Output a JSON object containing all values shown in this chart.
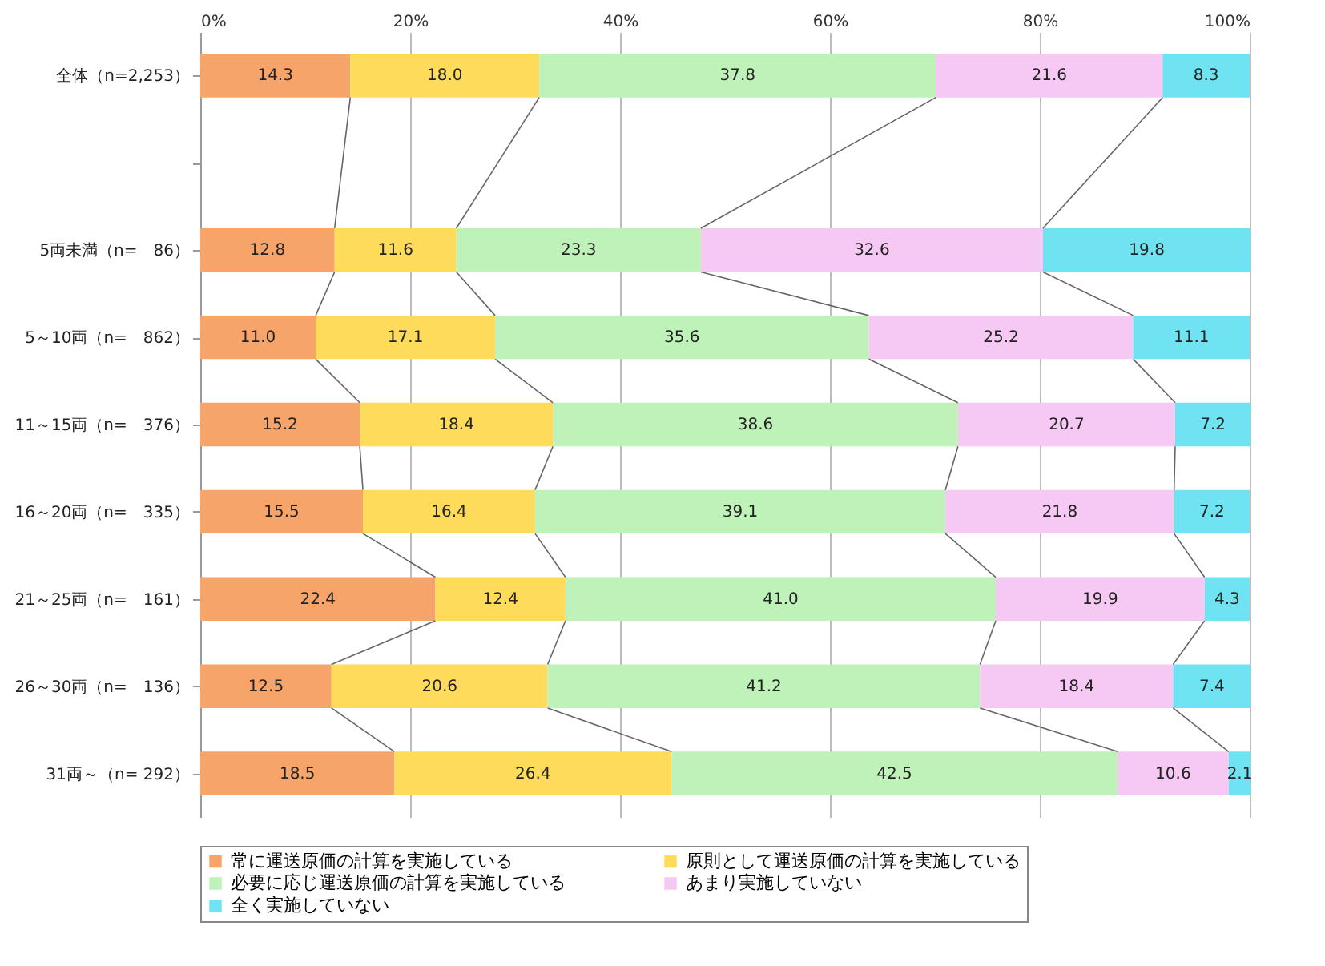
{
  "chart_data": {
    "type": "bar",
    "orientation": "horizontal",
    "stacked": true,
    "grid": "x",
    "legend": "bottom",
    "categories": [
      "全体（n=2,253）",
      null,
      "5両未満（n=　86）",
      "5～10両（n=　862）",
      "11～15両（n=　376）",
      "16～20両（n=　335）",
      "21～25両（n=　161）",
      "26～30両（n=　136）",
      "31両～（n= 292）"
    ],
    "xlim": [
      0,
      100
    ],
    "xticks": [
      {
        "value": 0,
        "label": "0%"
      },
      {
        "value": 20,
        "label": "20%"
      },
      {
        "value": 40,
        "label": "40%"
      },
      {
        "value": 60,
        "label": "60%"
      },
      {
        "value": 80,
        "label": "80%"
      },
      {
        "value": 100,
        "label": "100%"
      }
    ],
    "series": [
      {
        "name": "常に運送原価の計算を実施している",
        "color": "#f7a46a",
        "values": [
          14.3,
          null,
          12.8,
          11.0,
          15.2,
          15.5,
          22.4,
          12.5,
          18.5
        ],
        "value_labels": [
          "14.3",
          null,
          "12.8",
          "11.0",
          "15.2",
          "15.5",
          "22.4",
          "12.5",
          "18.5"
        ]
      },
      {
        "name": "原則として運送原価の計算を実施している",
        "color": "#ffdb5c",
        "values": [
          18.0,
          null,
          11.6,
          17.1,
          18.4,
          16.4,
          12.4,
          20.6,
          26.4
        ],
        "value_labels": [
          "18.0",
          null,
          "11.6",
          "17.1",
          "18.4",
          "16.4",
          "12.4",
          "20.6",
          "26.4"
        ]
      },
      {
        "name": "必要に応じ運送原価の計算を実施している",
        "color": "#bff2b8",
        "values": [
          37.8,
          null,
          23.3,
          35.6,
          38.6,
          39.1,
          41.0,
          41.2,
          42.5
        ],
        "value_labels": [
          "37.8",
          null,
          "23.3",
          "35.6",
          "38.6",
          "39.1",
          "41.0",
          "41.2",
          "42.5"
        ]
      },
      {
        "name": "あまり実施していない",
        "color": "#f6c8f4",
        "values": [
          21.6,
          null,
          32.6,
          25.2,
          20.7,
          21.8,
          19.9,
          18.4,
          10.6
        ],
        "value_labels": [
          "21.6",
          null,
          "32.6",
          "25.2",
          "20.7",
          "21.8",
          "19.9",
          "18.4",
          "10.6"
        ]
      },
      {
        "name": "全く実施していない",
        "color": "#6fe3f2",
        "values": [
          8.3,
          null,
          19.8,
          11.1,
          7.2,
          7.2,
          4.3,
          7.4,
          2.1
        ],
        "value_labels": [
          "8.3",
          null,
          "19.8",
          "11.1",
          "7.2",
          "7.2",
          "4.3",
          "7.4",
          "2.1"
        ]
      }
    ]
  }
}
